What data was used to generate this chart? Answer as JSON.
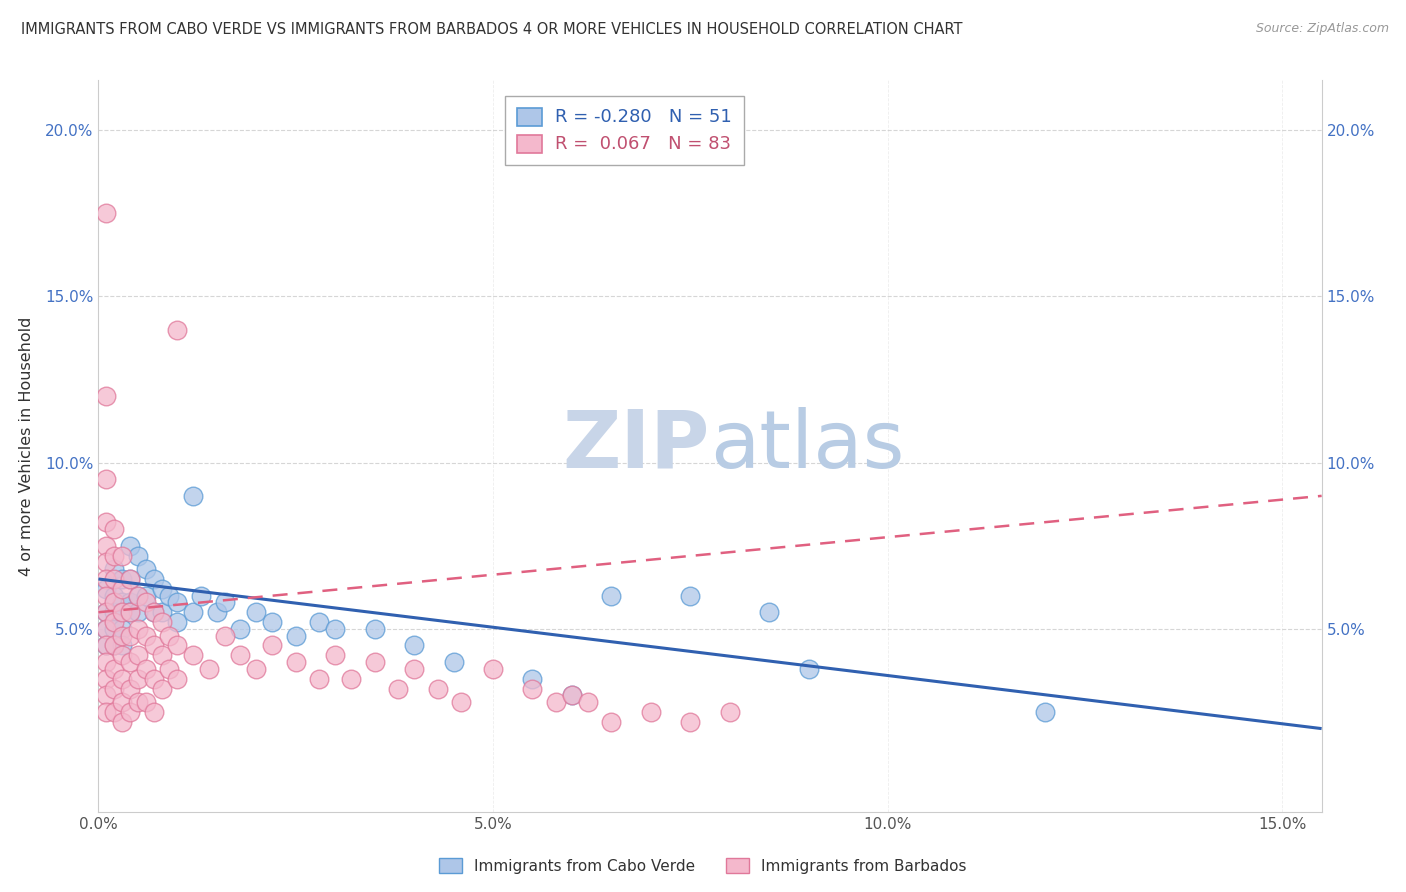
{
  "title": "IMMIGRANTS FROM CABO VERDE VS IMMIGRANTS FROM BARBADOS 4 OR MORE VEHICLES IN HOUSEHOLD CORRELATION CHART",
  "source": "Source: ZipAtlas.com",
  "ylabel": "4 or more Vehicles in Household",
  "xlim": [
    0.0,
    0.155
  ],
  "ylim": [
    -0.005,
    0.215
  ],
  "cabo_verde_color": "#aec6e8",
  "cabo_verde_edge_color": "#5b9bd5",
  "barbados_color": "#f4b8cc",
  "barbados_edge_color": "#e0789a",
  "cabo_verde_line_color": "#3060b0",
  "barbados_line_color": "#e06080",
  "watermark_color": "#c8d5e8",
  "cabo_verde_R": -0.28,
  "cabo_verde_N": 51,
  "barbados_R": 0.067,
  "barbados_N": 83,
  "cabo_verde_scatter": [
    [
      0.001,
      0.062
    ],
    [
      0.001,
      0.055
    ],
    [
      0.001,
      0.05
    ],
    [
      0.001,
      0.045
    ],
    [
      0.002,
      0.068
    ],
    [
      0.002,
      0.06
    ],
    [
      0.002,
      0.055
    ],
    [
      0.002,
      0.05
    ],
    [
      0.002,
      0.045
    ],
    [
      0.003,
      0.065
    ],
    [
      0.003,
      0.058
    ],
    [
      0.003,
      0.055
    ],
    [
      0.003,
      0.05
    ],
    [
      0.003,
      0.045
    ],
    [
      0.004,
      0.075
    ],
    [
      0.004,
      0.065
    ],
    [
      0.004,
      0.058
    ],
    [
      0.004,
      0.055
    ],
    [
      0.005,
      0.072
    ],
    [
      0.005,
      0.06
    ],
    [
      0.005,
      0.055
    ],
    [
      0.006,
      0.068
    ],
    [
      0.006,
      0.06
    ],
    [
      0.007,
      0.065
    ],
    [
      0.007,
      0.055
    ],
    [
      0.008,
      0.062
    ],
    [
      0.008,
      0.055
    ],
    [
      0.009,
      0.06
    ],
    [
      0.01,
      0.058
    ],
    [
      0.01,
      0.052
    ],
    [
      0.012,
      0.09
    ],
    [
      0.012,
      0.055
    ],
    [
      0.013,
      0.06
    ],
    [
      0.015,
      0.055
    ],
    [
      0.016,
      0.058
    ],
    [
      0.018,
      0.05
    ],
    [
      0.02,
      0.055
    ],
    [
      0.022,
      0.052
    ],
    [
      0.025,
      0.048
    ],
    [
      0.028,
      0.052
    ],
    [
      0.03,
      0.05
    ],
    [
      0.035,
      0.05
    ],
    [
      0.04,
      0.045
    ],
    [
      0.045,
      0.04
    ],
    [
      0.055,
      0.035
    ],
    [
      0.06,
      0.03
    ],
    [
      0.065,
      0.06
    ],
    [
      0.075,
      0.06
    ],
    [
      0.085,
      0.055
    ],
    [
      0.09,
      0.038
    ],
    [
      0.12,
      0.025
    ]
  ],
  "barbados_scatter": [
    [
      0.001,
      0.175
    ],
    [
      0.001,
      0.12
    ],
    [
      0.001,
      0.095
    ],
    [
      0.001,
      0.082
    ],
    [
      0.001,
      0.075
    ],
    [
      0.001,
      0.07
    ],
    [
      0.001,
      0.065
    ],
    [
      0.001,
      0.06
    ],
    [
      0.001,
      0.055
    ],
    [
      0.001,
      0.05
    ],
    [
      0.001,
      0.045
    ],
    [
      0.001,
      0.04
    ],
    [
      0.001,
      0.035
    ],
    [
      0.001,
      0.03
    ],
    [
      0.001,
      0.025
    ],
    [
      0.002,
      0.08
    ],
    [
      0.002,
      0.072
    ],
    [
      0.002,
      0.065
    ],
    [
      0.002,
      0.058
    ],
    [
      0.002,
      0.052
    ],
    [
      0.002,
      0.045
    ],
    [
      0.002,
      0.038
    ],
    [
      0.002,
      0.032
    ],
    [
      0.002,
      0.025
    ],
    [
      0.003,
      0.072
    ],
    [
      0.003,
      0.062
    ],
    [
      0.003,
      0.055
    ],
    [
      0.003,
      0.048
    ],
    [
      0.003,
      0.042
    ],
    [
      0.003,
      0.035
    ],
    [
      0.003,
      0.028
    ],
    [
      0.003,
      0.022
    ],
    [
      0.004,
      0.065
    ],
    [
      0.004,
      0.055
    ],
    [
      0.004,
      0.048
    ],
    [
      0.004,
      0.04
    ],
    [
      0.004,
      0.032
    ],
    [
      0.004,
      0.025
    ],
    [
      0.005,
      0.06
    ],
    [
      0.005,
      0.05
    ],
    [
      0.005,
      0.042
    ],
    [
      0.005,
      0.035
    ],
    [
      0.005,
      0.028
    ],
    [
      0.006,
      0.058
    ],
    [
      0.006,
      0.048
    ],
    [
      0.006,
      0.038
    ],
    [
      0.006,
      0.028
    ],
    [
      0.007,
      0.055
    ],
    [
      0.007,
      0.045
    ],
    [
      0.007,
      0.035
    ],
    [
      0.007,
      0.025
    ],
    [
      0.008,
      0.052
    ],
    [
      0.008,
      0.042
    ],
    [
      0.008,
      0.032
    ],
    [
      0.009,
      0.048
    ],
    [
      0.009,
      0.038
    ],
    [
      0.01,
      0.14
    ],
    [
      0.01,
      0.045
    ],
    [
      0.01,
      0.035
    ],
    [
      0.012,
      0.042
    ],
    [
      0.014,
      0.038
    ],
    [
      0.016,
      0.048
    ],
    [
      0.018,
      0.042
    ],
    [
      0.02,
      0.038
    ],
    [
      0.022,
      0.045
    ],
    [
      0.025,
      0.04
    ],
    [
      0.028,
      0.035
    ],
    [
      0.03,
      0.042
    ],
    [
      0.032,
      0.035
    ],
    [
      0.035,
      0.04
    ],
    [
      0.038,
      0.032
    ],
    [
      0.04,
      0.038
    ],
    [
      0.043,
      0.032
    ],
    [
      0.046,
      0.028
    ],
    [
      0.05,
      0.038
    ],
    [
      0.055,
      0.032
    ],
    [
      0.058,
      0.028
    ],
    [
      0.06,
      0.03
    ],
    [
      0.062,
      0.028
    ],
    [
      0.065,
      0.022
    ],
    [
      0.07,
      0.025
    ],
    [
      0.075,
      0.022
    ],
    [
      0.08,
      0.025
    ]
  ]
}
